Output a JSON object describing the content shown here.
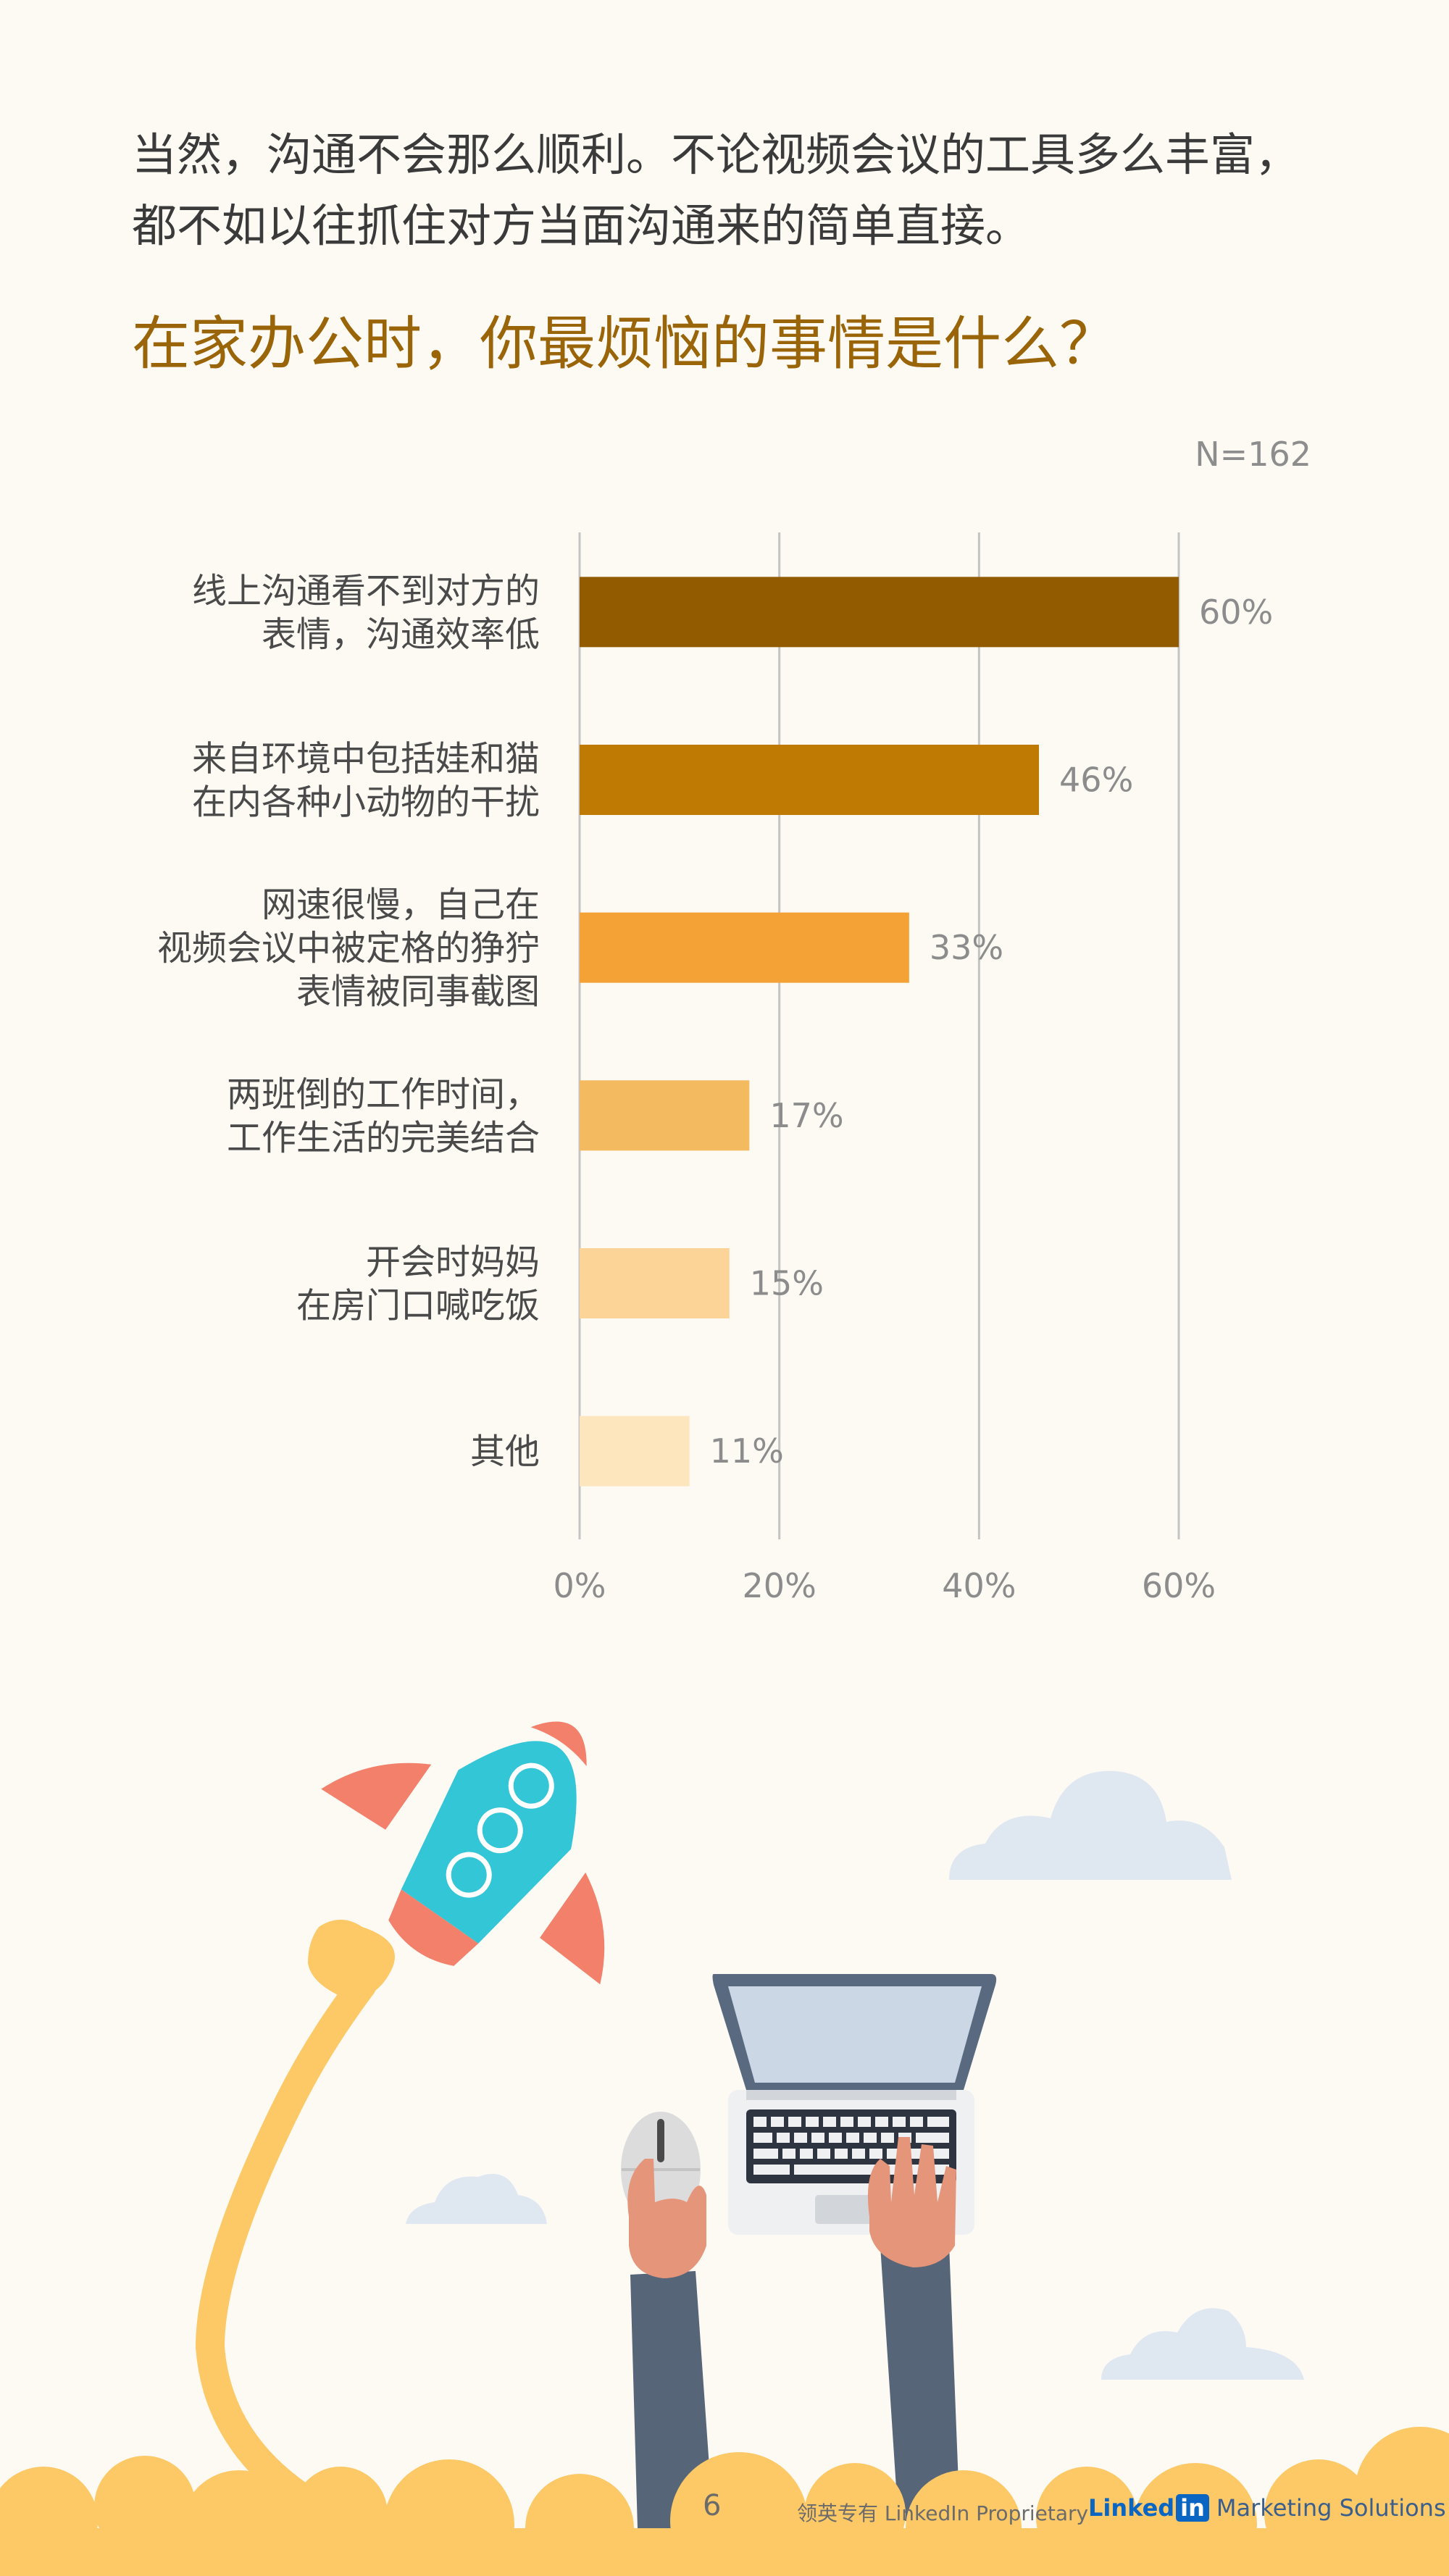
{
  "intro": {
    "line1": "当然，沟通不会那么顺利。不论视频会议的工具多么丰富，",
    "line2": "都不如以往抓住对方当面沟通来的简单直接。"
  },
  "question": "在家办公时，你最烦恼的事情是什么？",
  "sample_size": "N=162",
  "chart_data": {
    "type": "bar",
    "orientation": "horizontal",
    "title": "在家办公时，你最烦恼的事情是什么？",
    "annotation": "N=162",
    "categories": [
      [
        "线上沟通看不到对方的",
        "表情，沟通效率低"
      ],
      [
        "来自环境中包括娃和猫",
        "在内各种小动物的干扰"
      ],
      [
        "网速很慢，自己在",
        "视频会议中被定格的狰狞",
        "表情被同事截图"
      ],
      [
        "两班倒的工作时间，",
        "工作生活的完美结合"
      ],
      [
        "开会时妈妈",
        "在房门口喊吃饭"
      ],
      [
        "其他"
      ]
    ],
    "values": [
      60,
      46,
      33,
      17,
      15,
      11
    ],
    "value_labels": [
      "60%",
      "46%",
      "33%",
      "17%",
      "15%",
      "11%"
    ],
    "colors": [
      "#935b00",
      "#bf7a03",
      "#f4a235",
      "#f4ba5f",
      "#fcd498",
      "#fde5bd"
    ],
    "xlim": [
      0,
      60
    ],
    "xticks": [
      0,
      20,
      40,
      60
    ],
    "xtick_labels": [
      "0%",
      "20%",
      "40%",
      "60%"
    ],
    "grid": true
  },
  "footer": {
    "page_number": "6",
    "proprietary": "领英专有 LinkedIn Proprietary",
    "brand_linked": "Linked",
    "brand_in": "in",
    "brand_ms": "Marketing Solutions"
  },
  "illustration": {
    "icons": [
      "rocket-icon",
      "laptop-icon",
      "mouse-icon",
      "cloud-icon",
      "hand-icon"
    ]
  }
}
